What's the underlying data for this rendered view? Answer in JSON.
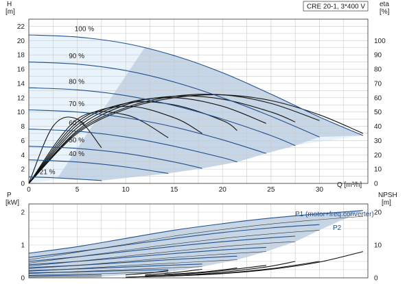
{
  "chart_data": [
    {
      "type": "line",
      "title": "CRE 20-1, 3*400 V",
      "xlabel": "Q [m³/h]",
      "ylabel_left_unit": "H",
      "ylabel_left": "[m]",
      "ylabel_right_unit": "eta",
      "ylabel_right": "[%]",
      "xlim": [
        0,
        35
      ],
      "ylim": [
        0,
        23
      ],
      "y2lim": [
        0,
        115
      ],
      "x_ticks": [
        "0",
        "5",
        "10",
        "15",
        "20",
        "25",
        "30"
      ],
      "y_ticks": [
        "0",
        "2",
        "4",
        "6",
        "8",
        "10",
        "12",
        "14",
        "16",
        "18",
        "20",
        "22"
      ],
      "y2_ticks": [
        "0",
        "10",
        "20",
        "30",
        "40",
        "50",
        "60",
        "70",
        "80",
        "90",
        "100"
      ],
      "grid": true,
      "head_series": [
        {
          "name": "100 %",
          "x": [
            0,
            5,
            10,
            15,
            20,
            25,
            30,
            34.5
          ],
          "values": [
            20.8,
            20.5,
            19.6,
            17.9,
            15.5,
            12.5,
            9.3,
            6.7
          ]
        },
        {
          "name": "90 %",
          "x": [
            0,
            5,
            10,
            15,
            20,
            25,
            30
          ],
          "values": [
            17.0,
            16.7,
            15.8,
            14.2,
            12.0,
            9.4,
            6.5
          ]
        },
        {
          "name": "80 %",
          "x": [
            0,
            5,
            10,
            15,
            20,
            25,
            27.5
          ],
          "values": [
            13.4,
            13.1,
            12.3,
            10.9,
            9.0,
            6.7,
            5.3
          ]
        },
        {
          "name": "70 %",
          "x": [
            0,
            5,
            10,
            15,
            20,
            24.5
          ],
          "values": [
            10.3,
            10.0,
            9.2,
            7.9,
            6.1,
            4.2
          ]
        },
        {
          "name": "60 %",
          "x": [
            0,
            5,
            10,
            15,
            20,
            21.5
          ],
          "values": [
            7.6,
            7.3,
            6.5,
            5.2,
            3.6,
            3.0
          ]
        },
        {
          "name": "50 %",
          "x": [
            0,
            5,
            10,
            15,
            17.9
          ],
          "values": [
            5.2,
            4.9,
            4.2,
            3.0,
            2.1
          ]
        },
        {
          "name": "40 %",
          "x": [
            0,
            5,
            10,
            14.4
          ],
          "values": [
            3.3,
            3.0,
            2.3,
            1.4
          ]
        },
        {
          "name": "21 %",
          "x": [
            0,
            2.5,
            5,
            7.5
          ],
          "values": [
            0.9,
            0.8,
            0.6,
            0.4
          ]
        }
      ],
      "eta_series": [
        {
          "name": "100 %",
          "x": [
            0,
            5,
            10,
            15,
            20,
            25,
            30,
            34.5
          ],
          "values": [
            0,
            35,
            52,
            60,
            62,
            58,
            48,
            35
          ]
        },
        {
          "name": "90 %",
          "x": [
            0,
            5,
            10,
            15,
            20,
            25,
            30
          ],
          "values": [
            0,
            36,
            53,
            61,
            62,
            56,
            44
          ]
        },
        {
          "name": "80 %",
          "x": [
            0,
            5,
            10,
            15,
            20,
            25,
            27.5
          ],
          "values": [
            0,
            37,
            55,
            61,
            59,
            50,
            43
          ]
        },
        {
          "name": "70 %",
          "x": [
            0,
            5,
            10,
            15,
            20,
            24.5
          ],
          "values": [
            0,
            39,
            56,
            60,
            54,
            42
          ]
        },
        {
          "name": "60 %",
          "x": [
            0,
            5,
            10,
            15,
            20,
            21.5
          ],
          "values": [
            0,
            41,
            56,
            55,
            44,
            37
          ]
        },
        {
          "name": "50 %",
          "x": [
            0,
            5,
            10,
            15,
            17.9
          ],
          "values": [
            0,
            43,
            54,
            46,
            35
          ]
        },
        {
          "name": "40 %",
          "x": [
            0,
            5,
            10,
            14.4
          ],
          "values": [
            0,
            45,
            48,
            32
          ]
        },
        {
          "name": "21 %",
          "x": [
            0,
            2.5,
            5,
            7.5
          ],
          "values": [
            0,
            40,
            45,
            25
          ]
        }
      ]
    },
    {
      "type": "line",
      "ylabel_left_unit": "P",
      "ylabel_left": "[kW]",
      "ylabel_right_unit": "NPSH",
      "ylabel_right": "[m]",
      "xlim": [
        0,
        35
      ],
      "ylim": [
        0,
        2.25
      ],
      "y2lim": [
        0,
        22.5
      ],
      "y_ticks": [
        "0",
        "1",
        "2"
      ],
      "y2_ticks": [
        "0",
        "10",
        "20"
      ],
      "grid": true,
      "series_labels": [
        "P1 (motor+freq.converter)",
        "P2"
      ],
      "p1_series": [
        {
          "name": "100 %",
          "x": [
            0,
            5,
            10,
            15,
            20,
            25,
            30,
            34.5
          ],
          "values": [
            0.75,
            0.95,
            1.2,
            1.45,
            1.65,
            1.82,
            1.95,
            2.05
          ]
        },
        {
          "name": "90 %",
          "x": [
            0,
            5,
            10,
            15,
            20,
            25,
            30
          ],
          "values": [
            0.62,
            0.8,
            1.0,
            1.2,
            1.38,
            1.52,
            1.62
          ]
        },
        {
          "name": "80 %",
          "x": [
            0,
            5,
            10,
            15,
            20,
            25,
            27.5
          ],
          "values": [
            0.5,
            0.64,
            0.8,
            0.96,
            1.1,
            1.22,
            1.27
          ]
        },
        {
          "name": "70 %",
          "x": [
            0,
            5,
            10,
            15,
            20,
            24.5
          ],
          "values": [
            0.4,
            0.5,
            0.62,
            0.74,
            0.85,
            0.93
          ]
        },
        {
          "name": "60 %",
          "x": [
            0,
            5,
            10,
            15,
            20,
            21.5
          ],
          "values": [
            0.31,
            0.38,
            0.47,
            0.56,
            0.64,
            0.66
          ]
        },
        {
          "name": "50 %",
          "x": [
            0,
            5,
            10,
            15,
            17.9
          ],
          "values": [
            0.22,
            0.27,
            0.33,
            0.39,
            0.42
          ]
        },
        {
          "name": "40 %",
          "x": [
            0,
            5,
            10,
            14.4
          ],
          "values": [
            0.15,
            0.18,
            0.22,
            0.25
          ]
        },
        {
          "name": "21 %",
          "x": [
            0,
            2.5,
            5,
            7.5
          ],
          "values": [
            0.06,
            0.07,
            0.08,
            0.09
          ]
        }
      ],
      "p2_series": [
        {
          "name": "100 %",
          "x": [
            0,
            5,
            10,
            15,
            20,
            25,
            30,
            34.5
          ],
          "values": [
            0.55,
            0.78,
            1.02,
            1.27,
            1.47,
            1.64,
            1.77,
            1.87
          ]
        },
        {
          "name": "90 %",
          "x": [
            0,
            5,
            10,
            15,
            20,
            25,
            30
          ],
          "values": [
            0.45,
            0.64,
            0.84,
            1.03,
            1.2,
            1.34,
            1.45
          ]
        },
        {
          "name": "80 %",
          "x": [
            0,
            5,
            10,
            15,
            20,
            25,
            27.5
          ],
          "values": [
            0.36,
            0.5,
            0.66,
            0.81,
            0.95,
            1.06,
            1.1
          ]
        },
        {
          "name": "70 %",
          "x": [
            0,
            5,
            10,
            15,
            20,
            24.5
          ],
          "values": [
            0.28,
            0.38,
            0.5,
            0.62,
            0.72,
            0.8
          ]
        },
        {
          "name": "60 %",
          "x": [
            0,
            5,
            10,
            15,
            20,
            21.5
          ],
          "values": [
            0.2,
            0.28,
            0.37,
            0.45,
            0.53,
            0.55
          ]
        },
        {
          "name": "50 %",
          "x": [
            0,
            5,
            10,
            15,
            17.9
          ],
          "values": [
            0.13,
            0.19,
            0.25,
            0.31,
            0.34
          ]
        },
        {
          "name": "40 %",
          "x": [
            0,
            5,
            10,
            14.4
          ],
          "values": [
            0.08,
            0.11,
            0.15,
            0.18
          ]
        },
        {
          "name": "21 %",
          "x": [
            0,
            2.5,
            5,
            7.5
          ],
          "values": [
            0.02,
            0.03,
            0.03,
            0.04
          ]
        }
      ],
      "npsh_series": [
        {
          "name": "100 %",
          "x": [
            10,
            15,
            20,
            25,
            30,
            34.5
          ],
          "values": [
            0.2,
            0.6,
            1.3,
            2.6,
            4.8,
            8.0
          ]
        },
        {
          "name": "90 %",
          "x": [
            10,
            15,
            20,
            25,
            30
          ],
          "values": [
            0.2,
            0.6,
            1.4,
            2.8,
            5.0
          ]
        },
        {
          "name": "80 %",
          "x": [
            12,
            18,
            24,
            27.5
          ],
          "values": [
            0.4,
            1.2,
            3.1,
            5.0
          ]
        },
        {
          "name": "70 %",
          "x": [
            12,
            18,
            24.5
          ],
          "values": [
            0.6,
            1.6,
            3.8
          ]
        },
        {
          "name": "60 %",
          "x": [
            14,
            18,
            21.5
          ],
          "values": [
            1.0,
            1.8,
            3.0
          ]
        },
        {
          "name": "50 %",
          "x": [
            12,
            15,
            17.9
          ],
          "values": [
            0.9,
            1.6,
            2.6
          ]
        },
        {
          "name": "40 %",
          "x": [
            10,
            12.5,
            14.4
          ],
          "values": [
            0.9,
            1.5,
            2.2
          ]
        }
      ]
    }
  ]
}
